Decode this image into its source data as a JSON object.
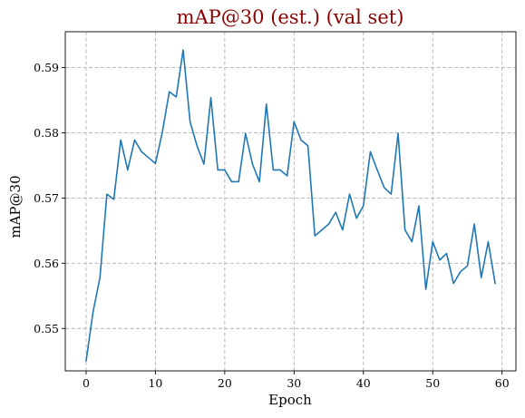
{
  "chart_data": {
    "type": "line",
    "title": "mAP@30 (est.) (val set)",
    "title_color": "#8b0000",
    "xlabel": "Epoch",
    "ylabel": "mAP@30",
    "xlim": [
      -3,
      62
    ],
    "ylim": [
      0.5435,
      0.5955
    ],
    "xticks": [
      0,
      10,
      20,
      30,
      40,
      50,
      60
    ],
    "xtick_labels": [
      "0",
      "10",
      "20",
      "30",
      "40",
      "50",
      "60"
    ],
    "yticks": [
      0.55,
      0.56,
      0.57,
      0.58,
      0.59
    ],
    "ytick_labels": [
      "0.55",
      "0.56",
      "0.57",
      "0.58",
      "0.59"
    ],
    "grid": true,
    "series": [
      {
        "color": "#1f77b4",
        "x": [
          0,
          1,
          2,
          3,
          4,
          5,
          6,
          7,
          8,
          9,
          10,
          11,
          12,
          13,
          14,
          15,
          16,
          17,
          18,
          19,
          20,
          21,
          22,
          23,
          24,
          25,
          26,
          27,
          28,
          29,
          30,
          31,
          32,
          33,
          34,
          35,
          36,
          37,
          38,
          39,
          40,
          41,
          42,
          43,
          44,
          45,
          46,
          47,
          48,
          49,
          50,
          51,
          52,
          53,
          54,
          55,
          56,
          57,
          58,
          59
        ],
        "y": [
          0.545,
          0.5525,
          0.5578,
          0.5706,
          0.5698,
          0.5789,
          0.5743,
          0.5789,
          0.5771,
          0.5762,
          0.5753,
          0.5801,
          0.5863,
          0.5855,
          0.5927,
          0.5817,
          0.578,
          0.5752,
          0.5854,
          0.5743,
          0.5743,
          0.5725,
          0.5725,
          0.5799,
          0.5752,
          0.5725,
          0.5844,
          0.5743,
          0.5743,
          0.5734,
          0.5817,
          0.5789,
          0.578,
          0.5642,
          0.5651,
          0.566,
          0.5678,
          0.5651,
          0.5706,
          0.5669,
          0.5688,
          0.5771,
          0.5743,
          0.5716,
          0.5706,
          0.5799,
          0.5651,
          0.5633,
          0.5688,
          0.556,
          0.5633,
          0.5605,
          0.5615,
          0.5569,
          0.5587,
          0.5596,
          0.566,
          0.5578,
          0.5633,
          0.5569
        ]
      }
    ]
  }
}
